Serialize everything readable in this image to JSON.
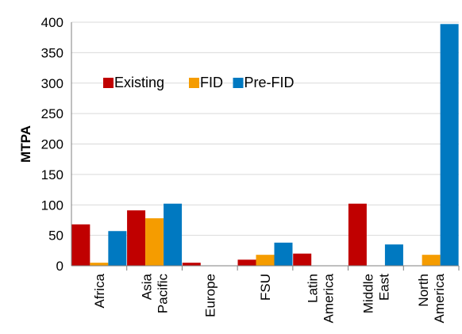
{
  "chart_data": {
    "type": "bar",
    "ylabel": "MTPA",
    "xlabel": "",
    "ylim": [
      0,
      400
    ],
    "yticks": [
      0,
      50,
      100,
      150,
      200,
      250,
      300,
      350,
      400
    ],
    "categories": [
      [
        "Africa"
      ],
      [
        "Asia",
        "Pacific"
      ],
      [
        "Europe"
      ],
      [
        "FSU"
      ],
      [
        "Latin",
        "America"
      ],
      [
        "Middle",
        "East"
      ],
      [
        "North",
        "America"
      ]
    ],
    "series": [
      {
        "name": "Existing",
        "color": "#c00000",
        "values": [
          68,
          91,
          5,
          10,
          20,
          102,
          0
        ]
      },
      {
        "name": "FID",
        "color": "#f59c00",
        "values": [
          5,
          78,
          0,
          18,
          0,
          0,
          18
        ]
      },
      {
        "name": "Pre-FID",
        "color": "#0079c1",
        "values": [
          57,
          102,
          0,
          38,
          0,
          35,
          397
        ]
      }
    ],
    "grid": true,
    "legend_position": "top-left"
  }
}
